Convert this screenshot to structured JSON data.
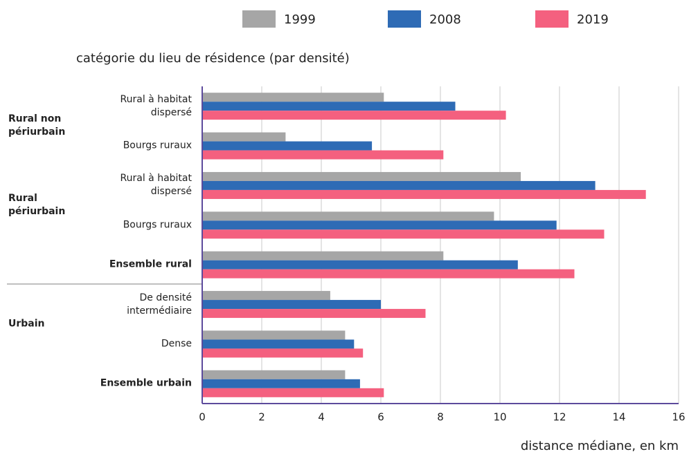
{
  "chart_data": {
    "type": "hbar",
    "title": "catégorie du lieu de résidence (par densité)",
    "x_label": "distance médiane, en km",
    "categories": [
      "Rural à habitat dispersé",
      "Bourgs ruraux",
      "Rural à habitat dispersé",
      "Bourgs ruraux",
      "Ensemble rural",
      "De densité intermédiaire",
      "Dense",
      "Ensemble urbain"
    ],
    "emphasis": [
      false,
      false,
      false,
      false,
      true,
      false,
      false,
      true
    ],
    "groups": [
      "Rural non périurbain",
      "Rural non périurbain",
      "Rural périurbain",
      "Rural périurbain",
      null,
      "Urbain",
      "Urbain",
      null
    ],
    "series": [
      {
        "name": "1999",
        "color": "#a6a6a6",
        "values": [
          6.1,
          2.8,
          10.7,
          9.8,
          8.1,
          4.3,
          4.8,
          4.8
        ]
      },
      {
        "name": "2008",
        "color": "#2e6bb5",
        "values": [
          8.5,
          5.7,
          13.2,
          11.9,
          10.6,
          6.0,
          5.1,
          5.3
        ]
      },
      {
        "name": "2019",
        "color": "#f4607f",
        "values": [
          10.2,
          8.1,
          14.9,
          13.5,
          12.5,
          7.5,
          5.4,
          6.1
        ]
      }
    ],
    "xlim": [
      0,
      16
    ],
    "xticks": [
      0,
      2,
      4,
      6,
      8,
      10,
      12,
      14,
      16
    ],
    "grid": true
  }
}
